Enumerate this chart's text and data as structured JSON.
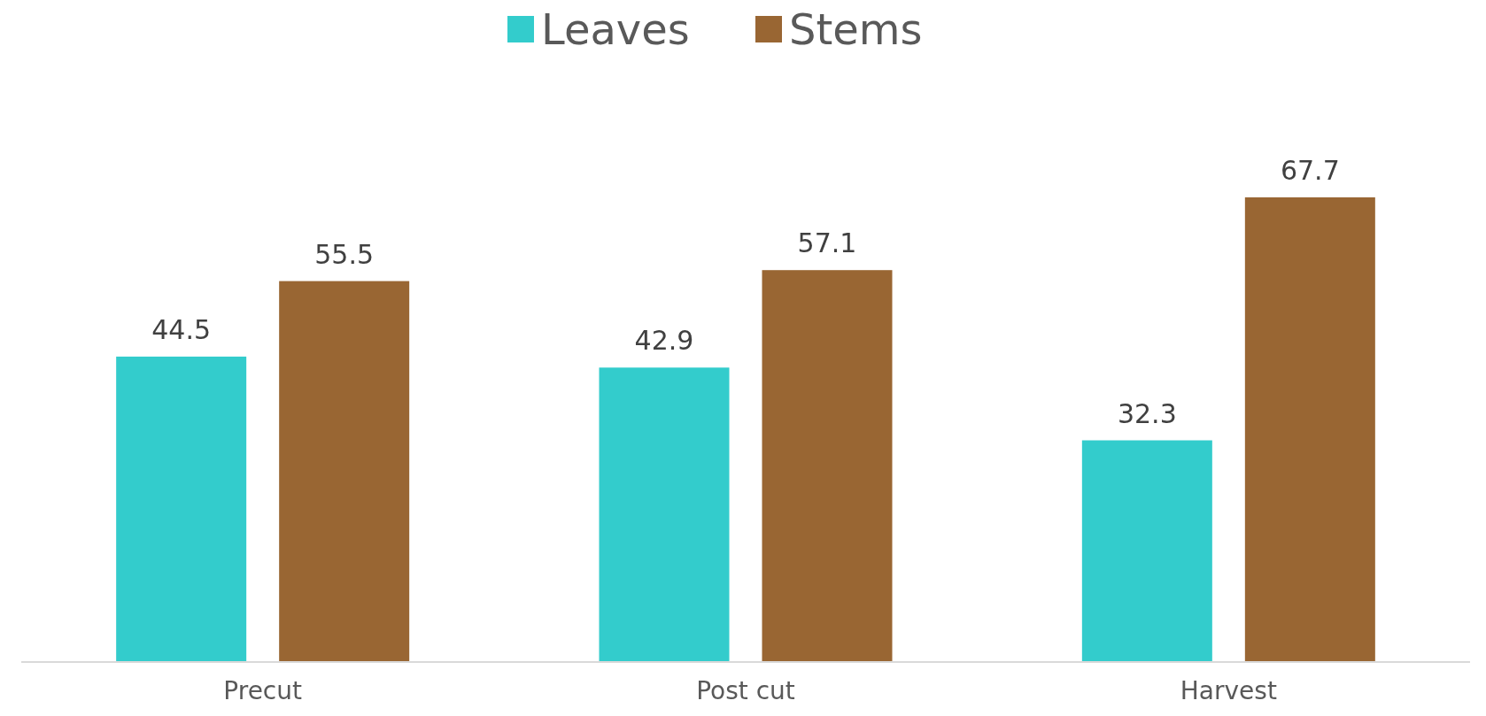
{
  "chart_data": {
    "type": "bar",
    "categories": [
      "Precut",
      "Post cut",
      "Harvest"
    ],
    "series": [
      {
        "name": "Leaves",
        "color": "#33cccc",
        "values": [
          44.5,
          42.9,
          32.3
        ]
      },
      {
        "name": "Stems",
        "color": "#996633",
        "values": [
          55.5,
          57.1,
          67.7
        ]
      }
    ],
    "data_labels": true,
    "legend": "top",
    "grid": false
  }
}
